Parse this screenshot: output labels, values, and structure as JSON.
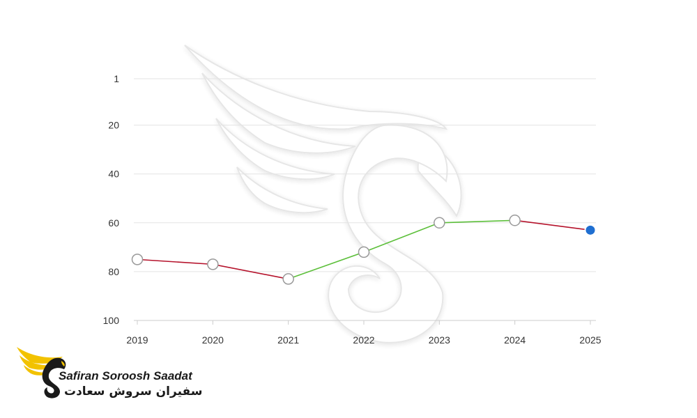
{
  "chart_data": {
    "type": "line",
    "x": [
      "2019",
      "2020",
      "2021",
      "2022",
      "2023",
      "2024",
      "2025"
    ],
    "values": [
      75,
      77,
      83,
      72,
      60,
      59,
      63
    ],
    "y_ticks": [
      "1",
      "20",
      "40",
      "60",
      "80",
      "100"
    ],
    "ylim": [
      1,
      100
    ],
    "y_inverted": true,
    "grid": true,
    "colors": {
      "down": "#b5122b",
      "up": "#5cbf3a",
      "last_point": "#1f6fd1",
      "point_fill": "#ffffff",
      "point_stroke": "#999999"
    }
  },
  "brand": {
    "name_en": "Safiran Soroosh Saadat",
    "name_fa": "سفیران سروش سعادت",
    "logo_icon": "eagle-wing-logo-icon",
    "logo_colors": {
      "wing": "#f2c200",
      "body": "#1a1a1a"
    }
  },
  "watermark_icon": "eagle-wing-watermark-icon"
}
